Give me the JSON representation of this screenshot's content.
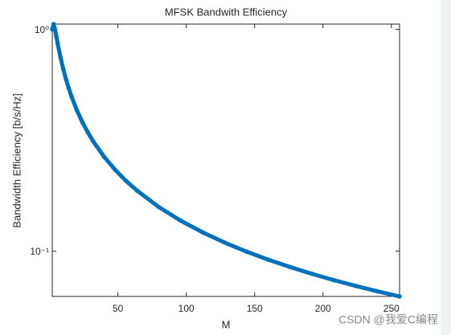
{
  "chart_data": {
    "type": "line",
    "title": "MFSK Bandwith Efficiency",
    "xlabel": "M",
    "ylabel": "Bandwidth Efficiency [b/s/Hz]",
    "x": [
      2,
      3,
      4,
      5,
      6,
      8,
      10,
      12,
      14,
      16,
      20,
      24,
      28,
      32,
      40,
      48,
      56,
      64,
      80,
      96,
      112,
      128,
      144,
      160,
      176,
      192,
      208,
      224,
      240,
      256
    ],
    "series": [
      {
        "name": "Bandwidth Efficiency",
        "color": "#0072bd",
        "values": [
          1,
          1.0566,
          1,
          0.9288,
          0.8617,
          0.75,
          0.6644,
          0.5975,
          0.5439,
          0.5,
          0.4322,
          0.3821,
          0.3434,
          0.3125,
          0.2661,
          0.2327,
          0.2074,
          0.1875,
          0.158,
          0.1372,
          0.1216,
          0.1094,
          0.0996,
          0.0915,
          0.0848,
          0.079,
          0.074,
          0.0697,
          0.0659,
          0.0625
        ]
      }
    ],
    "xlim": [
      2,
      256
    ],
    "ylim": [
      0.0625,
      1.0566
    ],
    "log_y": true,
    "xticks": [
      50,
      100,
      150,
      200,
      250
    ],
    "yticks": [
      {
        "value": 1,
        "label": "10⁰"
      },
      {
        "value": 0.1,
        "label": "10⁻¹"
      }
    ],
    "grid": false
  },
  "watermark": "CSDN @我爱C编程"
}
